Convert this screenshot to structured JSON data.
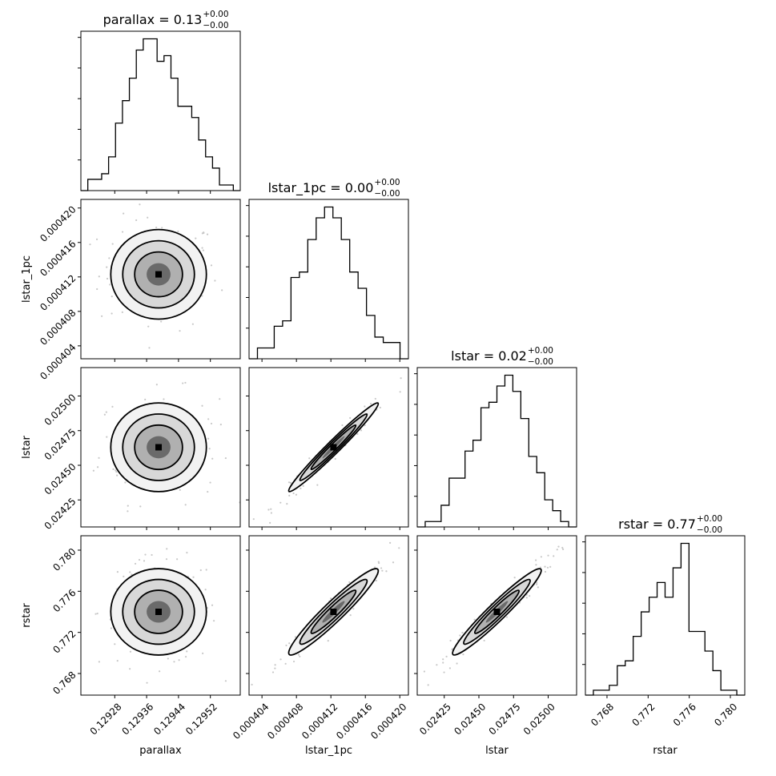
{
  "chart_data": {
    "type": "corner",
    "parameters": [
      "parallax",
      "lstar_1pc",
      "lstar",
      "rstar"
    ],
    "titles": [
      {
        "name": "parallax",
        "value": "0.13",
        "plus": "+0.00",
        "minus": "−0.00"
      },
      {
        "name": "lstar_1pc",
        "value": "0.00",
        "plus": "+0.00",
        "minus": "−0.00"
      },
      {
        "name": "lstar",
        "value": "0.02",
        "plus": "+0.00",
        "minus": "−0.00"
      },
      {
        "name": "rstar",
        "value": "0.77",
        "plus": "+0.00",
        "minus": "−0.00"
      }
    ],
    "axes": {
      "parallax": {
        "range": [
          0.129195,
          0.129595
        ],
        "ticks": [
          0.12928,
          0.12936,
          0.12944,
          0.12952
        ],
        "tick_labels": [
          "0.12928",
          "0.12936",
          "0.12944",
          "0.12952"
        ]
      },
      "lstar_1pc": {
        "range": [
          0.0004025,
          0.000421
        ],
        "ticks": [
          0.000404,
          0.000408,
          0.000412,
          0.000416,
          0.00042
        ],
        "tick_labels": [
          "0.000404",
          "0.000408",
          "0.000412",
          "0.000416",
          "0.000420"
        ]
      },
      "lstar": {
        "range": [
          0.024055,
          0.025205
        ],
        "ticks": [
          0.02425,
          0.0245,
          0.02475,
          0.025
        ],
        "tick_labels": [
          "0.02425",
          "0.02450",
          "0.02475",
          "0.02500"
        ]
      },
      "rstar": {
        "range": [
          0.7659,
          0.7814
        ],
        "ticks": [
          0.768,
          0.772,
          0.776,
          0.78
        ],
        "tick_labels": [
          "0.768",
          "0.772",
          "0.776",
          "0.780"
        ]
      }
    },
    "histograms": [
      {
        "param": "parallax",
        "counts": [
          0,
          2,
          2,
          3,
          6,
          12,
          16,
          20,
          25,
          27,
          27,
          23,
          24,
          20,
          15,
          15,
          13,
          9,
          6,
          4,
          1,
          1,
          0
        ]
      },
      {
        "param": "lstar_1pc",
        "counts": [
          0,
          2,
          2,
          6,
          7,
          15,
          16,
          22,
          26,
          28,
          26,
          22,
          16,
          13,
          8,
          4,
          3,
          3,
          0
        ]
      },
      {
        "param": "lstar",
        "counts": [
          0,
          1,
          1,
          4,
          9,
          9,
          14,
          16,
          22,
          23,
          26,
          28,
          25,
          20,
          13,
          10,
          5,
          3,
          1,
          0
        ]
      },
      {
        "param": "rstar",
        "counts": [
          0,
          1,
          1,
          2,
          6,
          7,
          12,
          17,
          20,
          23,
          20,
          26,
          31,
          13,
          13,
          9,
          5,
          1,
          1,
          0
        ]
      }
    ],
    "correlations": [
      {
        "x": "parallax",
        "y": "lstar_1pc",
        "correlation": 0.0,
        "mean": [
          0.12939,
          0.0004123
        ],
        "std": [
          6e-05,
          2.6e-06
        ]
      },
      {
        "x": "parallax",
        "y": "lstar",
        "correlation": 0.0,
        "mean": [
          0.12939,
          0.02463
        ],
        "std": [
          6e-05,
          0.00016
        ]
      },
      {
        "x": "parallax",
        "y": "rstar",
        "correlation": 0.0,
        "mean": [
          0.12939,
          0.774
        ],
        "std": [
          6e-05,
          0.0021
        ]
      },
      {
        "x": "lstar_1pc",
        "y": "lstar",
        "correlation": 0.98,
        "mean": [
          0.0004123,
          0.02463
        ],
        "std": [
          2.6e-06,
          0.00016
        ]
      },
      {
        "x": "lstar_1pc",
        "y": "rstar",
        "correlation": 0.95,
        "mean": [
          0.0004123,
          0.774
        ],
        "std": [
          2.6e-06,
          0.0021
        ]
      },
      {
        "x": "lstar",
        "y": "rstar",
        "correlation": 0.96,
        "mean": [
          0.02463,
          0.774
        ],
        "std": [
          0.00016,
          0.0021
        ]
      }
    ],
    "grid": false,
    "legend": "none"
  }
}
